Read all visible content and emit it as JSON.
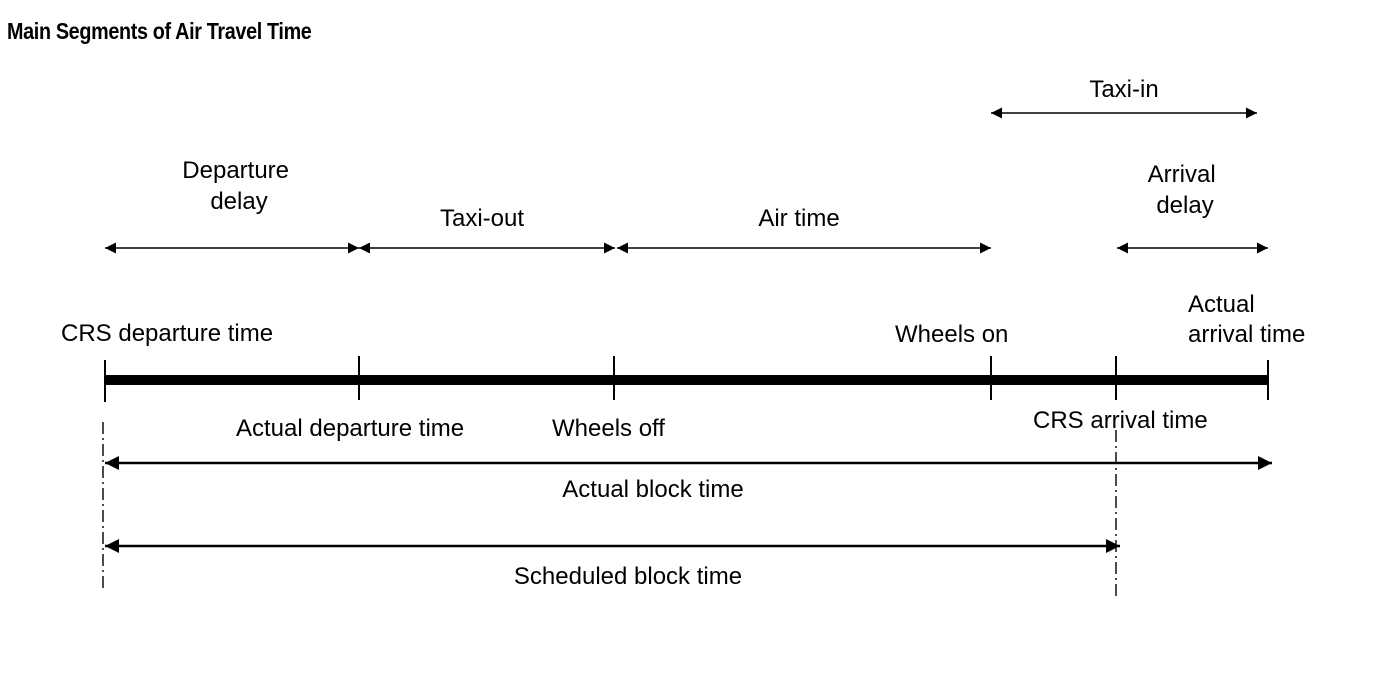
{
  "title": "Main Segments of Air Travel Time",
  "colors": {
    "line": "#000000",
    "background": "#ffffff"
  },
  "segments_above": {
    "departure_delay": [
      "Departure",
      "delay"
    ],
    "taxi_out": "Taxi-out",
    "air_time": "Air time",
    "taxi_in": "Taxi-in",
    "arrival_delay": [
      "Arrival",
      "delay"
    ]
  },
  "time_points_above": {
    "crs_departure_time": "CRS departure time",
    "wheels_on": "Wheels on",
    "actual_arrival_time": [
      "Actual",
      "arrival time"
    ]
  },
  "time_points_below": {
    "actual_departure_time": "Actual departure time",
    "wheels_off": "Wheels off",
    "crs_arrival_time": "CRS arrival time"
  },
  "block_times": {
    "actual": "Actual block time",
    "scheduled": "Scheduled block time"
  }
}
